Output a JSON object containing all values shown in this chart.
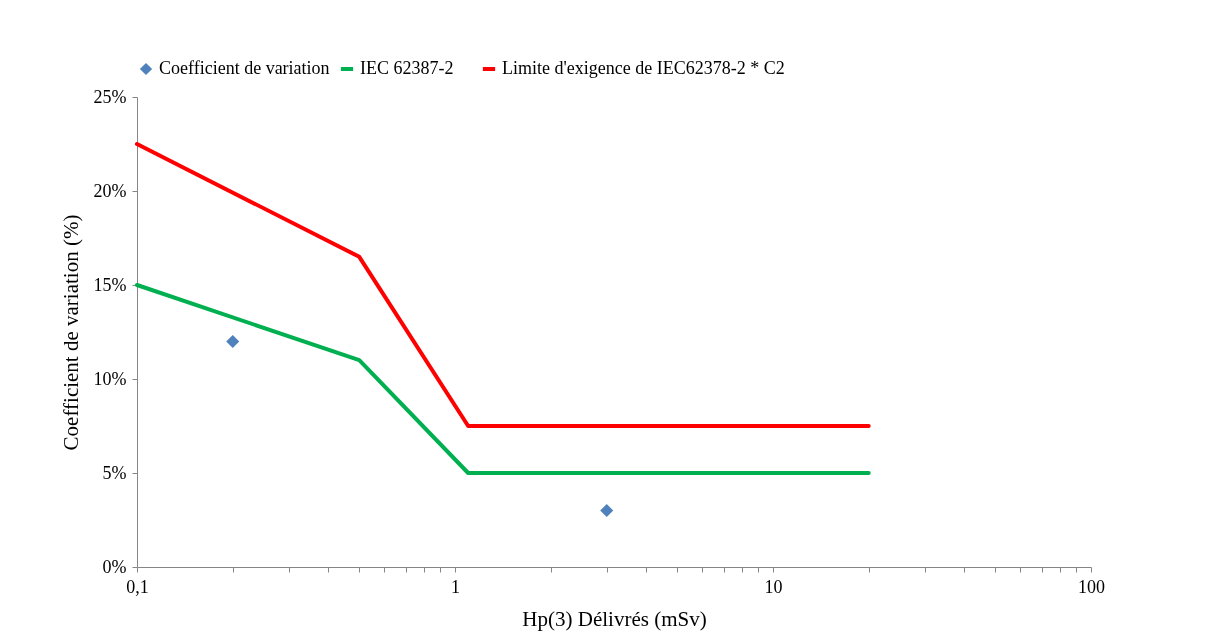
{
  "chart_data": {
    "type": "line",
    "xlabel": "Hp(3) Délivrés (mSv)",
    "ylabel": "Coefficient de variation (%)",
    "log": "x",
    "xlim": [
      0.1,
      100
    ],
    "ylim": [
      0,
      25
    ],
    "xticks": [
      {
        "value": 0.1,
        "label": "0,1"
      },
      {
        "value": 0.2,
        "label": null
      },
      {
        "value": 0.3,
        "label": null
      },
      {
        "value": 0.4,
        "label": null
      },
      {
        "value": 0.5,
        "label": null
      },
      {
        "value": 0.6,
        "label": null
      },
      {
        "value": 0.7,
        "label": null
      },
      {
        "value": 0.8,
        "label": null
      },
      {
        "value": 0.9,
        "label": null
      },
      1,
      {
        "value": 2,
        "label": null
      },
      {
        "value": 3,
        "label": null
      },
      {
        "value": 4,
        "label": null
      },
      {
        "value": 5,
        "label": null
      },
      {
        "value": 6,
        "label": null
      },
      {
        "value": 7,
        "label": null
      },
      {
        "value": 8,
        "label": null
      },
      {
        "value": 9,
        "label": null
      },
      10,
      {
        "value": 20,
        "label": null
      },
      {
        "value": 30,
        "label": null
      },
      {
        "value": 40,
        "label": null
      },
      {
        "value": 50,
        "label": null
      },
      {
        "value": 60,
        "label": null
      },
      {
        "value": 70,
        "label": null
      },
      {
        "value": 80,
        "label": null
      },
      {
        "value": 90,
        "label": null
      },
      100
    ],
    "yticks": [
      {
        "value": 0,
        "label": "0%"
      },
      {
        "value": 5,
        "label": "5%"
      },
      {
        "value": 10,
        "label": "10%"
      },
      {
        "value": 15,
        "label": "15%"
      },
      {
        "value": 20,
        "label": "20%"
      },
      {
        "value": 25,
        "label": "25%"
      }
    ],
    "legend": "top",
    "grid": false,
    "series": [
      {
        "name": "Coefficient de variation",
        "type": "scatter",
        "marker": "diamond",
        "color": "#4f81bd",
        "x": [
          0.2,
          3
        ],
        "values": [
          12,
          3
        ]
      },
      {
        "name": "IEC 62387-2",
        "marker": "none",
        "color": "#00b050",
        "x": [
          0.1,
          0.5,
          1.1,
          20
        ],
        "values": [
          15,
          11,
          5,
          5
        ]
      },
      {
        "name": "Limite d'exigence de IEC62378-2 * C2",
        "marker": "none",
        "color": "#ff0000",
        "x": [
          0.1,
          0.5,
          1.1,
          20
        ],
        "values": [
          22.5,
          16.5,
          7.5,
          7.5
        ]
      }
    ]
  }
}
